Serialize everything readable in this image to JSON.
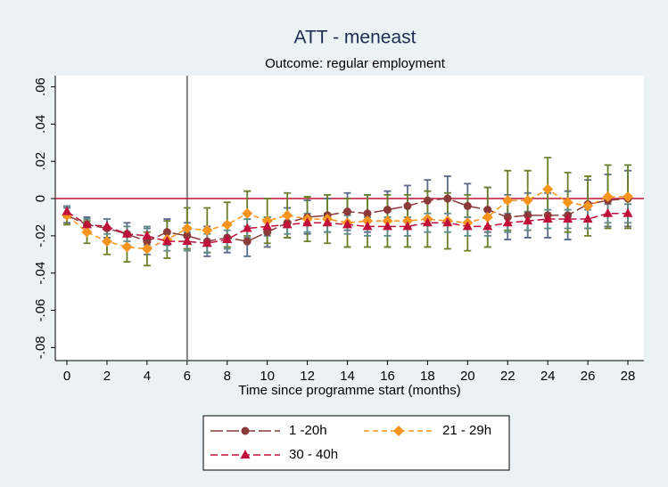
{
  "chart_data": {
    "type": "line",
    "title": "ATT - meneast",
    "subtitle": "Outcome: regular employment",
    "x_label": "Time since programme start (months)",
    "x": [
      0,
      1,
      2,
      3,
      4,
      5,
      6,
      7,
      8,
      9,
      10,
      11,
      12,
      13,
      14,
      15,
      16,
      17,
      18,
      19,
      20,
      21,
      22,
      23,
      24,
      25,
      26,
      27,
      28
    ],
    "xlim": [
      -0.58,
      28.8
    ],
    "xticks": [
      0,
      2,
      4,
      6,
      8,
      10,
      12,
      14,
      16,
      18,
      20,
      22,
      24,
      26,
      28
    ],
    "ylim": [
      -0.087,
      0.066
    ],
    "yticks": [
      {
        "value": -0.08,
        "label": "-.08"
      },
      {
        "value": -0.06,
        "label": "-.06"
      },
      {
        "value": -0.04,
        "label": "-.04"
      },
      {
        "value": -0.02,
        "label": "-.02"
      },
      0,
      {
        "value": 0.02,
        "label": ".02"
      },
      {
        "value": 0.04,
        "label": ".04"
      },
      {
        "value": 0.06,
        "label": ".06"
      }
    ],
    "grid": false,
    "vline": 6,
    "vline_color": "#808080",
    "hline": 0,
    "hline_color": "#c0103a",
    "series": [
      {
        "name": "1 -20h",
        "color": "#8b3a3a",
        "error_color": "#5a6a8a",
        "marker": "circle",
        "dash": "14,4",
        "values": [
          -0.009,
          -0.014,
          -0.016,
          -0.019,
          -0.023,
          -0.018,
          -0.02,
          -0.023,
          -0.021,
          -0.023,
          -0.018,
          -0.013,
          -0.01,
          -0.009,
          -0.007,
          -0.008,
          -0.006,
          -0.004,
          -0.001,
          0.0,
          -0.004,
          -0.006,
          -0.01,
          -0.009,
          -0.009,
          -0.009,
          -0.003,
          -0.001,
          0.0
        ],
        "errors": [
          0.004,
          0.004,
          0.005,
          0.006,
          0.007,
          0.007,
          0.007,
          0.008,
          0.008,
          0.008,
          0.008,
          0.008,
          0.009,
          0.009,
          0.01,
          0.01,
          0.01,
          0.011,
          0.011,
          0.012,
          0.012,
          0.012,
          0.012,
          0.012,
          0.012,
          0.013,
          0.013,
          0.014,
          0.015
        ]
      },
      {
        "name": "21 - 29h",
        "color": "#f7941d",
        "error_color": "#6b7f2a",
        "marker": "diamond",
        "dash": "6,4",
        "values": [
          -0.009,
          -0.018,
          -0.023,
          -0.026,
          -0.027,
          -0.022,
          -0.016,
          -0.017,
          -0.014,
          -0.008,
          -0.012,
          -0.009,
          -0.011,
          -0.011,
          -0.013,
          -0.012,
          -0.012,
          -0.012,
          -0.011,
          -0.012,
          -0.013,
          -0.01,
          -0.001,
          -0.001,
          0.005,
          -0.002,
          -0.004,
          0.001,
          0.001
        ],
        "errors": [
          0.005,
          0.006,
          0.007,
          0.008,
          0.009,
          0.01,
          0.011,
          0.012,
          0.012,
          0.012,
          0.012,
          0.012,
          0.012,
          0.013,
          0.013,
          0.014,
          0.014,
          0.014,
          0.015,
          0.015,
          0.015,
          0.016,
          0.016,
          0.016,
          0.017,
          0.016,
          0.016,
          0.017,
          0.017
        ]
      },
      {
        "name": "30 - 40h",
        "color": "#c0103a",
        "error_color": "#5f8a8a",
        "marker": "triangle",
        "dash": "8,4",
        "values": [
          -0.007,
          -0.014,
          -0.015,
          -0.019,
          -0.02,
          -0.023,
          -0.023,
          -0.024,
          -0.022,
          -0.016,
          -0.015,
          -0.014,
          -0.013,
          -0.013,
          -0.014,
          -0.015,
          -0.015,
          -0.015,
          -0.013,
          -0.013,
          -0.015,
          -0.015,
          -0.013,
          -0.012,
          -0.011,
          -0.011,
          -0.011,
          -0.008,
          -0.008
        ],
        "errors": [
          0.003,
          0.003,
          0.004,
          0.004,
          0.005,
          0.005,
          0.005,
          0.005,
          0.005,
          0.005,
          0.005,
          0.005,
          0.005,
          0.005,
          0.005,
          0.005,
          0.005,
          0.005,
          0.005,
          0.005,
          0.005,
          0.005,
          0.005,
          0.005,
          0.005,
          0.005,
          0.005,
          0.005,
          0.005
        ]
      }
    ]
  }
}
